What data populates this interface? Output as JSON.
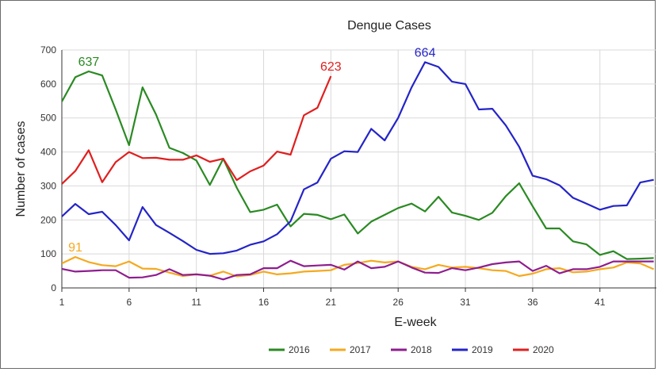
{
  "chart_data": {
    "type": "line",
    "title": "Dengue Cases",
    "xlabel": "E-week",
    "ylabel": "Number of cases",
    "x_ticks": [
      1,
      6,
      11,
      16,
      21,
      26,
      31,
      36,
      41
    ],
    "y_ticks": [
      0,
      100,
      200,
      300,
      400,
      500,
      600,
      700
    ],
    "xlim": [
      1,
      45.2
    ],
    "ylim": [
      0,
      700
    ],
    "grid": true,
    "legend_position": "bottom",
    "series": [
      {
        "name": "2016",
        "color": "#2a8a22",
        "start_week": 1,
        "values": [
          548,
          620,
          637,
          625,
          525,
          420,
          590,
          510,
          412,
          397,
          375,
          303,
          380,
          295,
          223,
          230,
          245,
          181,
          218,
          215,
          202,
          216,
          160,
          195,
          215,
          235,
          248,
          225,
          268,
          222,
          212,
          200,
          221,
          270,
          308,
          240,
          175,
          175,
          137,
          128,
          97,
          108,
          85,
          86,
          88
        ]
      },
      {
        "name": "2017",
        "color": "#f5a91f",
        "start_week": 1,
        "values": [
          72,
          91,
          76,
          67,
          64,
          78,
          57,
          56,
          45,
          35,
          40,
          36,
          48,
          34,
          38,
          48,
          40,
          43,
          48,
          50,
          52,
          68,
          73,
          80,
          75,
          78,
          62,
          55,
          68,
          60,
          62,
          58,
          52,
          50,
          35,
          42,
          55,
          58,
          46,
          48,
          55,
          60,
          75,
          72,
          55
        ]
      },
      {
        "name": "2018",
        "color": "#8e1e8e",
        "start_week": 1,
        "values": [
          56,
          48,
          50,
          52,
          52,
          30,
          31,
          38,
          55,
          38,
          40,
          36,
          25,
          38,
          40,
          58,
          58,
          80,
          64,
          66,
          68,
          54,
          78,
          58,
          62,
          78,
          60,
          45,
          44,
          58,
          52,
          60,
          70,
          75,
          78,
          50,
          65,
          43,
          55,
          55,
          62,
          78,
          78,
          78,
          78
        ]
      },
      {
        "name": "2019",
        "color": "#2424c8",
        "start_week": 1,
        "values": [
          210,
          247,
          217,
          224,
          185,
          140,
          238,
          185,
          162,
          138,
          112,
          100,
          102,
          110,
          127,
          137,
          158,
          196,
          290,
          310,
          380,
          402,
          400,
          468,
          434,
          500,
          590,
          664,
          650,
          607,
          600,
          525,
          527,
          478,
          415,
          330,
          320,
          302,
          265,
          248,
          230,
          241,
          243,
          310,
          318
        ]
      },
      {
        "name": "2020",
        "color": "#e01f1f",
        "start_week": 1,
        "values": [
          306,
          344,
          405,
          311,
          370,
          400,
          382,
          383,
          377,
          377,
          390,
          371,
          380,
          317,
          343,
          360,
          401,
          392,
          508,
          530,
          623
        ]
      }
    ],
    "annotations": [
      {
        "text": "637",
        "series": "2016",
        "week": 3,
        "value": 637
      },
      {
        "text": "91",
        "series": "2017",
        "week": 2,
        "value": 91
      },
      {
        "text": "623",
        "series": "2020",
        "week": 21,
        "value": 623
      },
      {
        "text": "664",
        "series": "2019",
        "week": 28,
        "value": 664
      }
    ]
  }
}
